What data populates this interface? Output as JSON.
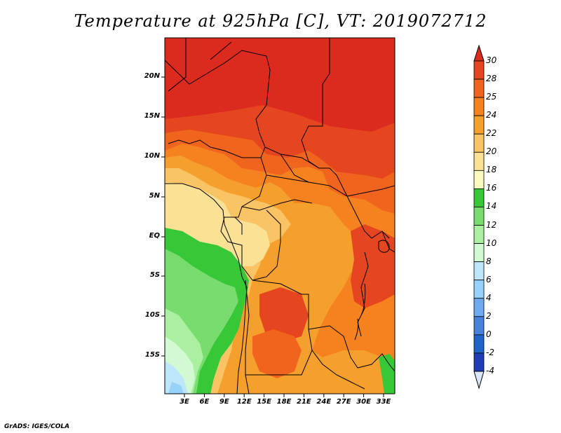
{
  "title": "Temperature at 925hPa [C], VT: 2019072712",
  "footer": "GrADS: IGES/COLA",
  "map": {
    "lat_labels": [
      "20N",
      "15N",
      "10N",
      "5N",
      "EQ",
      "5S",
      "10S",
      "15S"
    ],
    "lon_labels": [
      "3E",
      "6E",
      "9E",
      "12E",
      "15E",
      "18E",
      "21E",
      "24E",
      "27E",
      "30E",
      "33E"
    ]
  },
  "colorbar": {
    "labels": [
      "30",
      "28",
      "25",
      "24",
      "22",
      "20",
      "18",
      "16",
      "14",
      "12",
      "10",
      "8",
      "6",
      "4",
      "2",
      "0",
      "-2",
      "-4"
    ],
    "colors": [
      "#dc2a1e",
      "#e6461f",
      "#f0641e",
      "#f5821e",
      "#f5a02d",
      "#fac364",
      "#fae196",
      "#fafabe",
      "#37c837",
      "#78dc6e",
      "#aaf0a0",
      "#d2fad2",
      "#bee6fa",
      "#96d2fa",
      "#6eaaf0",
      "#4682dc",
      "#1e64c8",
      "#1e3cb4",
      "#0a0a78",
      "#dce6fa"
    ]
  }
}
